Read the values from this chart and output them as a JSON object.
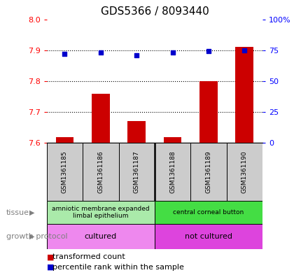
{
  "title": "GDS5366 / 8093440",
  "samples": [
    "GSM1361185",
    "GSM1361186",
    "GSM1361187",
    "GSM1361188",
    "GSM1361189",
    "GSM1361190"
  ],
  "bar_values": [
    7.62,
    7.76,
    7.67,
    7.62,
    7.8,
    7.91
  ],
  "bar_baseline": 7.6,
  "percentile_values": [
    72,
    73,
    71,
    73,
    74,
    75
  ],
  "ylim_left": [
    7.6,
    8.0
  ],
  "ylim_right": [
    0,
    100
  ],
  "yticks_left": [
    7.6,
    7.7,
    7.8,
    7.9,
    8.0
  ],
  "yticks_right": [
    0,
    25,
    50,
    75,
    100
  ],
  "yticklabels_right": [
    "0",
    "25",
    "50",
    "75",
    "100%"
  ],
  "bar_color": "#cc0000",
  "dot_color": "#0000cc",
  "tissue_groups": [
    {
      "label": "amniotic membrane expanded\nlimbal epithelium",
      "start": 0,
      "end": 3,
      "color": "#aaeaaa"
    },
    {
      "label": "central corneal button",
      "start": 3,
      "end": 6,
      "color": "#44dd44"
    }
  ],
  "growth_groups": [
    {
      "label": "cultured",
      "start": 0,
      "end": 3,
      "color": "#ee88ee"
    },
    {
      "label": "not cultured",
      "start": 3,
      "end": 6,
      "color": "#dd44dd"
    }
  ],
  "tissue_label": "tissue",
  "growth_label": "growth protocol",
  "legend_items": [
    {
      "label": "transformed count",
      "color": "#cc0000"
    },
    {
      "label": "percentile rank within the sample",
      "color": "#0000cc"
    }
  ],
  "grid_lines": [
    7.7,
    7.8,
    7.9
  ],
  "sample_box_color": "#cccccc",
  "bar_width": 0.5
}
